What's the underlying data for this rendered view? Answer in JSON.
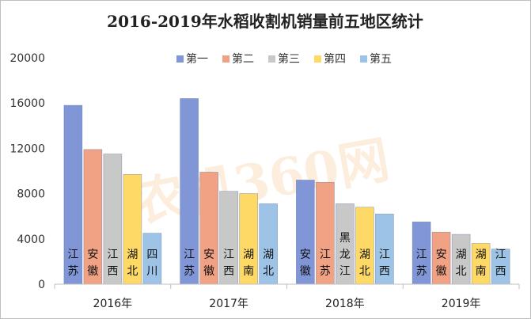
{
  "chart_data": {
    "type": "bar",
    "title": "2016-2019年水稻收割机销量前五地区统计",
    "xlabel": "",
    "ylabel": "",
    "ylim": [
      0,
      20000
    ],
    "yticks": [
      "0",
      "4000",
      "8000",
      "12000",
      "16000",
      "20000"
    ],
    "grid": false,
    "legend_position": "top-right",
    "categories": [
      "2016年",
      "2017年",
      "2018年",
      "2019年"
    ],
    "series": [
      {
        "name": "第一",
        "color": "#8096d6",
        "values": [
          15800,
          16400,
          9200,
          5500
        ]
      },
      {
        "name": "第二",
        "color": "#f1a184",
        "values": [
          11900,
          9900,
          9000,
          4600
        ]
      },
      {
        "name": "第三",
        "color": "#c8c8c8",
        "values": [
          11500,
          8200,
          7100,
          4400
        ]
      },
      {
        "name": "第四",
        "color": "#ffd966",
        "values": [
          9700,
          8000,
          6800,
          3600
        ]
      },
      {
        "name": "第五",
        "color": "#9dc3e6",
        "values": [
          4500,
          7100,
          6200,
          3100
        ]
      }
    ],
    "bar_labels": [
      [
        "江苏",
        "安徽",
        "江西",
        "湖北",
        "四川"
      ],
      [
        "江苏",
        "安徽",
        "江西",
        "湖南",
        "湖北"
      ],
      [
        "安徽",
        "江苏",
        "黑龙江",
        "湖北",
        "江西"
      ],
      [
        "江苏",
        "安徽",
        "湖北",
        "湖南",
        "江西"
      ]
    ]
  },
  "watermark_text": "农机360网"
}
